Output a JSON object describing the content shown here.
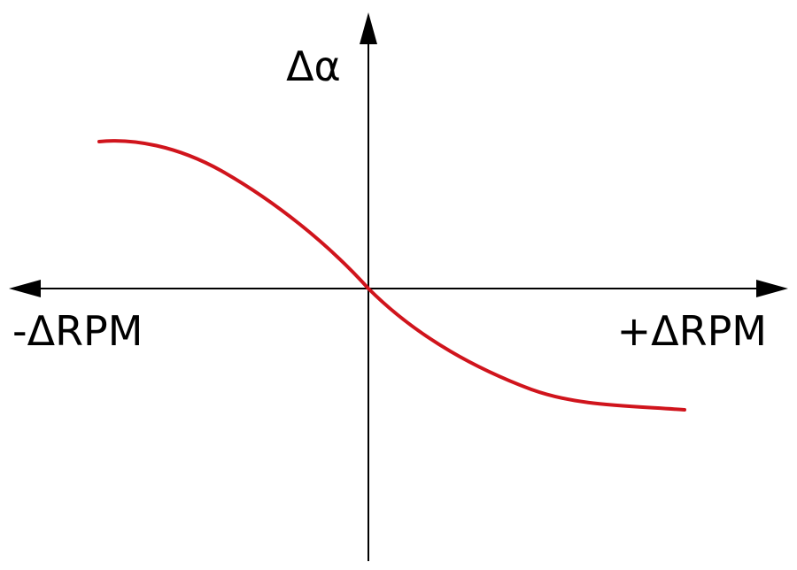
{
  "axes": {
    "y_label": "Δα",
    "x_left_label": "-ΔRPM",
    "x_right_label": "+ΔRPM"
  }
}
